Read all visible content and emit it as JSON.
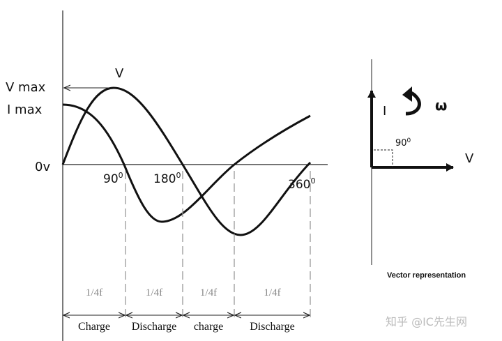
{
  "graph": {
    "axis_labels": {
      "v_max": "V max",
      "i_max": "I  max",
      "zero": "0v",
      "v_curve": "V"
    },
    "angles": [
      {
        "value": "90",
        "sup": "0"
      },
      {
        "value": "180",
        "sup": "0"
      },
      {
        "value": "360",
        "sup": "0"
      }
    ],
    "intervals": [
      {
        "period": "1/4f",
        "phase": "Charge"
      },
      {
        "period": "1/4f",
        "phase": "Discharge"
      },
      {
        "period": "1/4f",
        "phase": "charge"
      },
      {
        "period": "1/4f",
        "phase": "Discharge"
      }
    ]
  },
  "vector": {
    "current": "I",
    "voltage": "V",
    "omega": "ω",
    "angle": {
      "value": "90",
      "sup": "0"
    },
    "caption": "Vector representation"
  },
  "watermark": "知乎 @IC先生网"
}
